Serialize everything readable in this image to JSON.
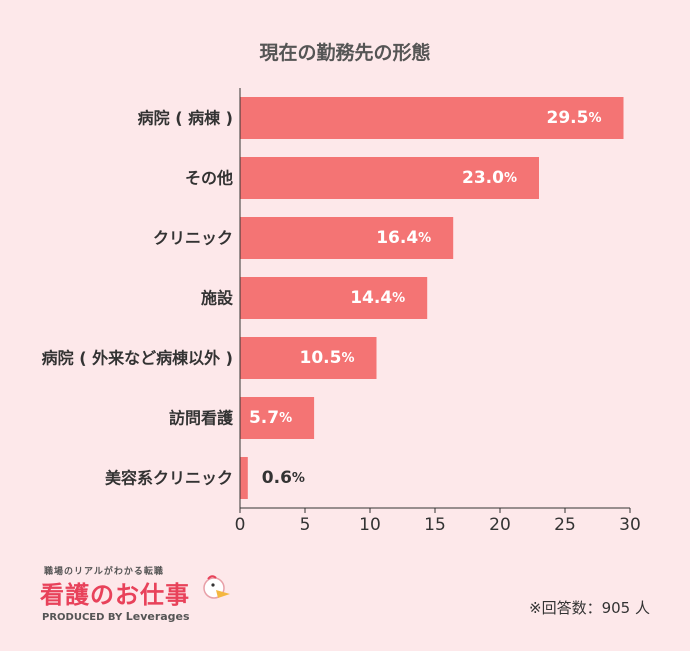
{
  "chart_data": {
    "type": "bar",
    "orientation": "horizontal",
    "title": "現在の勤務先の形態",
    "categories": [
      "病院 ( 病棟 )",
      "その他",
      "クリニック",
      "施設",
      "病院 ( 外来など病棟以外 )",
      "訪問看護",
      "美容系クリニック"
    ],
    "values": [
      29.5,
      23.0,
      16.4,
      14.4,
      10.5,
      5.7,
      0.6
    ],
    "value_labels": [
      "29.5",
      "23.0",
      "16.4",
      "14.4",
      "10.5",
      "5.7",
      "0.6"
    ],
    "unit": "%",
    "xlim": [
      0,
      30
    ],
    "xticks": [
      0,
      5,
      10,
      15,
      20,
      25,
      30
    ],
    "grid": false,
    "colors": {
      "bar": "#f47474",
      "label_inside": "#ffffff",
      "label_outside": "#333333"
    }
  },
  "footer": {
    "note": "※回答数：905 人"
  },
  "logo": {
    "tagline": "職場のリアルがわかる転職",
    "name": "看護のお仕事",
    "produced_by": "PRODUCED BY",
    "brand": "Leverages"
  }
}
